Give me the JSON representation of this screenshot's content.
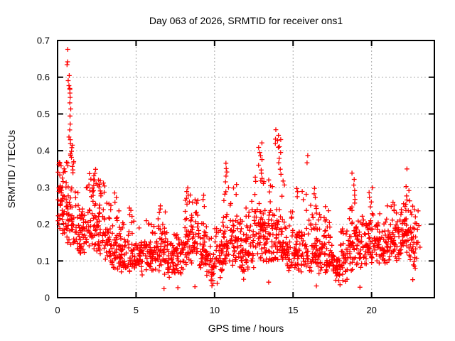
{
  "page": {
    "background": "#ffffff"
  },
  "chart_data": {
    "type": "scatter",
    "title": "Day 063 of 2026, SRMTID for receiver ons1",
    "xlabel": "GPS time / hours",
    "ylabel": "SRMTID / TECUs",
    "xlim": [
      0,
      24
    ],
    "ylim": [
      0,
      0.7
    ],
    "xticks": [
      0,
      5,
      10,
      15,
      20
    ],
    "xtick_labels": [
      "0",
      "5",
      "10",
      "15",
      "20"
    ],
    "yticks": [
      0,
      0.1,
      0.2,
      0.3,
      0.4,
      0.5,
      0.6,
      0.7
    ],
    "ytick_labels": [
      "0",
      "0.1",
      "0.2",
      "0.3",
      "0.4",
      "0.5",
      "0.6",
      "0.7"
    ],
    "grid": true,
    "legend": "none",
    "axis_color": "#000000",
    "grid_color": "#a8a8a8",
    "marker": {
      "glyph": "plus",
      "color": "#ff0000",
      "size": 7
    },
    "seed": 2026063,
    "scatter_model": {
      "note": "bands: [t_start,t_end,count,median,log_spread,min,max] envelope of the dense scatter; clusters: [t_center,t_width,[values]] distinct spikes and low outliers read from the plot",
      "bands": [
        [
          0.03,
          0.5,
          50,
          0.26,
          0.22,
          0.16,
          0.37
        ],
        [
          0.5,
          1.0,
          46,
          0.23,
          0.28,
          0.14,
          0.37
        ],
        [
          1.0,
          1.5,
          38,
          0.19,
          0.25,
          0.12,
          0.3
        ],
        [
          1.5,
          2.0,
          38,
          0.18,
          0.28,
          0.11,
          0.32
        ],
        [
          2.0,
          2.5,
          40,
          0.21,
          0.26,
          0.13,
          0.34
        ],
        [
          2.5,
          3.0,
          40,
          0.19,
          0.28,
          0.11,
          0.33
        ],
        [
          3.0,
          3.5,
          38,
          0.15,
          0.28,
          0.07,
          0.26
        ],
        [
          3.5,
          4.0,
          38,
          0.13,
          0.3,
          0.07,
          0.25
        ],
        [
          4.0,
          4.5,
          36,
          0.12,
          0.26,
          0.07,
          0.21
        ],
        [
          4.5,
          5.0,
          36,
          0.12,
          0.3,
          0.06,
          0.24
        ],
        [
          5.0,
          5.5,
          36,
          0.11,
          0.26,
          0.06,
          0.19
        ],
        [
          5.5,
          6.0,
          36,
          0.12,
          0.26,
          0.07,
          0.21
        ],
        [
          6.0,
          6.5,
          38,
          0.13,
          0.28,
          0.07,
          0.24
        ],
        [
          6.5,
          7.0,
          38,
          0.13,
          0.3,
          0.05,
          0.24
        ],
        [
          7.0,
          7.5,
          36,
          0.11,
          0.3,
          0.05,
          0.2
        ],
        [
          7.5,
          8.0,
          36,
          0.11,
          0.3,
          0.05,
          0.22
        ],
        [
          8.0,
          8.5,
          40,
          0.15,
          0.3,
          0.08,
          0.28
        ],
        [
          8.5,
          9.0,
          40,
          0.16,
          0.28,
          0.09,
          0.27
        ],
        [
          9.0,
          9.5,
          38,
          0.13,
          0.3,
          0.06,
          0.25
        ],
        [
          9.5,
          10.0,
          34,
          0.09,
          0.35,
          0.03,
          0.17
        ],
        [
          10.0,
          10.5,
          34,
          0.11,
          0.32,
          0.04,
          0.2
        ],
        [
          10.5,
          11.0,
          40,
          0.16,
          0.3,
          0.09,
          0.3
        ],
        [
          11.0,
          11.5,
          38,
          0.15,
          0.3,
          0.08,
          0.27
        ],
        [
          11.5,
          12.0,
          36,
          0.12,
          0.3,
          0.06,
          0.22
        ],
        [
          12.0,
          12.5,
          38,
          0.14,
          0.3,
          0.07,
          0.27
        ],
        [
          12.5,
          13.0,
          40,
          0.17,
          0.32,
          0.09,
          0.33
        ],
        [
          13.0,
          13.5,
          40,
          0.16,
          0.32,
          0.09,
          0.32
        ],
        [
          13.5,
          14.0,
          40,
          0.17,
          0.32,
          0.09,
          0.33
        ],
        [
          14.0,
          14.5,
          40,
          0.17,
          0.3,
          0.1,
          0.33
        ],
        [
          14.5,
          15.0,
          36,
          0.13,
          0.3,
          0.07,
          0.24
        ],
        [
          15.0,
          15.5,
          38,
          0.13,
          0.3,
          0.07,
          0.26
        ],
        [
          15.5,
          16.0,
          38,
          0.14,
          0.3,
          0.07,
          0.3
        ],
        [
          16.0,
          16.5,
          38,
          0.14,
          0.3,
          0.07,
          0.27
        ],
        [
          16.5,
          17.0,
          36,
          0.13,
          0.3,
          0.06,
          0.23
        ],
        [
          17.0,
          17.5,
          36,
          0.12,
          0.3,
          0.05,
          0.22
        ],
        [
          17.5,
          18.0,
          38,
          0.09,
          0.35,
          0.03,
          0.17
        ],
        [
          18.0,
          18.5,
          38,
          0.1,
          0.35,
          0.03,
          0.19
        ],
        [
          18.5,
          19.0,
          38,
          0.14,
          0.3,
          0.07,
          0.25
        ],
        [
          19.0,
          19.5,
          36,
          0.14,
          0.26,
          0.08,
          0.24
        ],
        [
          19.5,
          20.0,
          38,
          0.15,
          0.26,
          0.09,
          0.26
        ],
        [
          20.0,
          20.5,
          38,
          0.15,
          0.26,
          0.09,
          0.26
        ],
        [
          20.5,
          21.0,
          36,
          0.14,
          0.26,
          0.08,
          0.23
        ],
        [
          21.0,
          21.5,
          38,
          0.16,
          0.24,
          0.1,
          0.25
        ],
        [
          21.5,
          22.0,
          38,
          0.16,
          0.24,
          0.1,
          0.24
        ],
        [
          22.0,
          22.5,
          38,
          0.17,
          0.26,
          0.1,
          0.27
        ],
        [
          22.5,
          23.1,
          34,
          0.15,
          0.28,
          0.08,
          0.24
        ]
      ],
      "clusters": [
        [
          0.62,
          0.1,
          [
            0.673
          ]
        ],
        [
          0.6,
          0.08,
          [
            0.643,
            0.637
          ]
        ],
        [
          0.7,
          0.1,
          [
            0.602,
            0.592
          ]
        ],
        [
          0.76,
          0.12,
          [
            0.578,
            0.571,
            0.565,
            0.558,
            0.548
          ]
        ],
        [
          0.82,
          0.1,
          [
            0.532,
            0.512,
            0.493
          ]
        ],
        [
          0.78,
          0.12,
          [
            0.472,
            0.455,
            0.44
          ]
        ],
        [
          0.88,
          0.14,
          [
            0.43,
            0.421,
            0.413,
            0.406,
            0.399,
            0.392,
            0.386,
            0.38
          ]
        ],
        [
          0.95,
          0.2,
          [
            0.372,
            0.364,
            0.356,
            0.348,
            0.34
          ]
        ],
        [
          2.45,
          0.35,
          [
            0.352,
            0.34,
            0.33,
            0.32,
            0.31
          ]
        ],
        [
          2.7,
          0.25,
          [
            0.3,
            0.29,
            0.28
          ]
        ],
        [
          3.65,
          0.3,
          [
            0.285,
            0.272,
            0.26
          ]
        ],
        [
          4.7,
          0.25,
          [
            0.245,
            0.236
          ]
        ],
        [
          6.55,
          0.3,
          [
            0.25,
            0.242,
            0.233
          ]
        ],
        [
          8.35,
          0.3,
          [
            0.3,
            0.288,
            0.276,
            0.264
          ]
        ],
        [
          9.2,
          0.25,
          [
            0.28,
            0.268
          ]
        ],
        [
          10.75,
          0.3,
          [
            0.368,
            0.354,
            0.341,
            0.328,
            0.315,
            0.302,
            0.29
          ]
        ],
        [
          11.3,
          0.25,
          [
            0.31,
            0.296,
            0.283
          ]
        ],
        [
          12.9,
          0.3,
          [
            0.42,
            0.408,
            0.397,
            0.386,
            0.374,
            0.362,
            0.35,
            0.338,
            0.326
          ]
        ],
        [
          13.45,
          0.3,
          [
            0.32,
            0.305,
            0.29
          ]
        ],
        [
          13.95,
          0.25,
          [
            0.455,
            0.443,
            0.434,
            0.426,
            0.418,
            0.41
          ]
        ],
        [
          14.15,
          0.3,
          [
            0.43,
            0.414,
            0.398,
            0.382,
            0.366,
            0.35,
            0.336
          ]
        ],
        [
          14.45,
          0.25,
          [
            0.32,
            0.306
          ]
        ],
        [
          15.35,
          0.3,
          [
            0.3,
            0.287,
            0.274
          ]
        ],
        [
          15.9,
          0.2,
          [
            0.385,
            0.366
          ]
        ],
        [
          16.3,
          0.3,
          [
            0.3,
            0.285,
            0.271
          ]
        ],
        [
          17.15,
          0.25,
          [
            0.248,
            0.236
          ]
        ],
        [
          18.8,
          0.3,
          [
            0.337,
            0.322,
            0.308,
            0.294,
            0.281,
            0.268,
            0.255,
            0.243
          ]
        ],
        [
          19.95,
          0.3,
          [
            0.3,
            0.287,
            0.274,
            0.262,
            0.25
          ]
        ],
        [
          21.3,
          0.3,
          [
            0.262,
            0.25,
            0.239
          ]
        ],
        [
          22.3,
          0.25,
          [
            0.352,
            0.3,
            0.289,
            0.278,
            0.267,
            0.256
          ]
        ],
        [
          22.55,
          0.2,
          [
            0.246,
            0.233
          ]
        ],
        [
          6.76,
          0.1,
          [
            0.023
          ]
        ],
        [
          7.65,
          0.1,
          [
            0.025
          ]
        ],
        [
          8.74,
          0.1,
          [
            0.027
          ]
        ],
        [
          9.9,
          0.15,
          [
            0.037,
            0.03
          ]
        ],
        [
          10.15,
          0.1,
          [
            0.04
          ]
        ],
        [
          11.9,
          0.15,
          [
            0.05
          ]
        ],
        [
          13.4,
          0.1,
          [
            0.042
          ]
        ],
        [
          16.5,
          0.1,
          [
            0.031
          ]
        ],
        [
          18.0,
          0.15,
          [
            0.035
          ]
        ],
        [
          19.3,
          0.1,
          [
            0.029
          ]
        ],
        [
          22.6,
          0.1,
          [
            0.048
          ]
        ]
      ]
    }
  }
}
